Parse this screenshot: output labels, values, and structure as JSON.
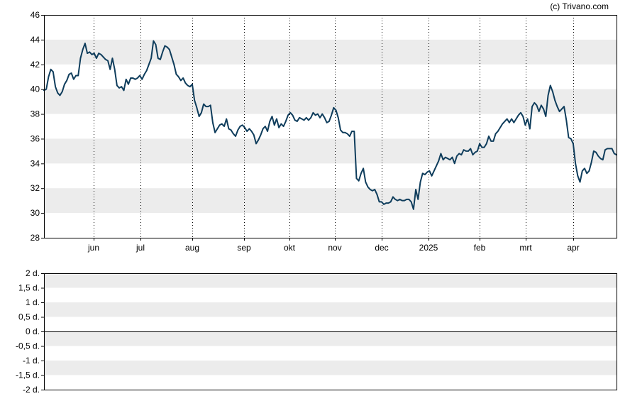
{
  "credit": "(c) Trivano.com",
  "colors": {
    "line": "#0f3d5c",
    "band": "#ececec",
    "grid": "#000000",
    "frame": "#000000"
  },
  "chart_data": [
    {
      "type": "line",
      "title": "",
      "xlabel": "",
      "ylabel": "",
      "ylim": [
        28,
        46
      ],
      "yticks": [
        "28",
        "30",
        "32",
        "34",
        "36",
        "38",
        "40",
        "42",
        "44",
        "46"
      ],
      "x_ticks": [
        "jun",
        "jul",
        "aug",
        "sep",
        "okt",
        "nov",
        "dec",
        "2025",
        "feb",
        "mrt",
        "apr"
      ],
      "grid": "vertical dotted at month starts; alternating horizontal bands",
      "legend": "none",
      "series": [
        {
          "values": [
            39.9,
            40.0,
            41.0,
            41.6,
            41.4,
            40.2,
            39.7,
            39.5,
            39.8,
            40.4,
            40.7,
            41.2,
            41.3,
            40.8,
            41.1,
            41.1,
            42.5,
            43.2,
            43.7,
            42.9,
            43.0,
            42.8,
            42.9,
            42.5,
            42.9,
            42.8,
            42.6,
            42.4,
            42.3,
            41.6,
            42.5,
            41.6,
            40.3,
            40.1,
            40.2,
            39.9,
            40.8,
            40.4,
            40.9,
            40.9,
            40.8,
            40.9,
            41.1,
            40.8,
            41.2,
            41.5,
            42.0,
            42.5,
            43.9,
            43.6,
            42.5,
            42.4,
            43.0,
            43.5,
            43.4,
            43.2,
            42.6,
            42.0,
            41.2,
            41.0,
            40.7,
            40.9,
            40.5,
            40.3,
            40.2,
            40.4,
            39.1,
            38.5,
            37.8,
            38.1,
            38.8,
            38.6,
            38.6,
            38.7,
            37.3,
            36.5,
            36.8,
            37.1,
            37.2,
            37.0,
            37.6,
            36.8,
            36.7,
            36.4,
            36.2,
            36.7,
            37.0,
            37.1,
            36.9,
            36.6,
            36.8,
            36.6,
            36.3,
            35.6,
            35.9,
            36.3,
            36.8,
            37.0,
            36.6,
            37.4,
            37.8,
            37.1,
            37.6,
            36.9,
            37.2,
            37.0,
            37.4,
            37.9,
            38.1,
            37.9,
            37.5,
            37.4,
            37.7,
            37.6,
            37.5,
            37.7,
            37.5,
            37.7,
            38.1,
            37.9,
            38.0,
            37.7,
            38.0,
            37.7,
            37.3,
            37.4,
            37.9,
            38.5,
            38.3,
            37.7,
            36.7,
            36.5,
            36.5,
            36.4,
            36.2,
            36.6,
            36.6,
            32.8,
            32.6,
            33.2,
            33.6,
            32.5,
            32.1,
            31.9,
            31.8,
            31.9,
            31.5,
            30.9,
            30.9,
            30.7,
            30.8,
            30.8,
            30.9,
            31.3,
            31.1,
            31.0,
            31.1,
            31.0,
            31.0,
            31.1,
            31.1,
            30.9,
            30.3,
            31.9,
            31.1,
            32.5,
            33.2,
            33.1,
            33.3,
            33.4,
            33.0,
            33.4,
            33.8,
            34.2,
            34.8,
            34.3,
            34.5,
            34.4,
            34.3,
            34.5,
            34.0,
            34.6,
            34.8,
            34.7,
            35.1,
            35.0,
            35.0,
            35.2,
            34.7,
            34.9,
            35.0,
            35.6,
            35.3,
            35.3,
            35.6,
            36.2,
            35.8,
            35.8,
            36.4,
            36.6,
            36.9,
            37.2,
            37.4,
            37.6,
            37.3,
            37.6,
            37.3,
            37.6,
            37.9,
            38.1,
            37.8,
            37.1,
            37.6,
            36.8,
            38.6,
            38.9,
            38.7,
            38.2,
            38.7,
            38.4,
            37.8,
            39.5,
            40.3,
            39.8,
            39.1,
            38.6,
            38.2,
            38.4,
            38.6,
            37.5,
            36.1,
            36.0,
            35.6,
            34.0,
            33.0,
            32.5,
            33.4,
            33.6,
            33.2,
            33.4,
            34.1,
            35.0,
            34.9,
            34.6,
            34.4,
            34.3,
            35.1,
            35.2,
            35.2,
            35.2,
            34.8,
            34.7
          ],
          "color": "#0f3d5c"
        }
      ]
    },
    {
      "type": "bar",
      "title": "",
      "xlabel": "",
      "ylabel": "",
      "ylim": [
        -2,
        2
      ],
      "yticks": [
        "-2 d.",
        "-1,5 d.",
        "-1 d.",
        "-0,5 d.",
        "0 d.",
        "0,5 d.",
        "1 d.",
        "1,5 d.",
        "2 d."
      ],
      "values": [],
      "grid": "alternating horizontal bands; baseline at 0",
      "legend": "none"
    }
  ]
}
